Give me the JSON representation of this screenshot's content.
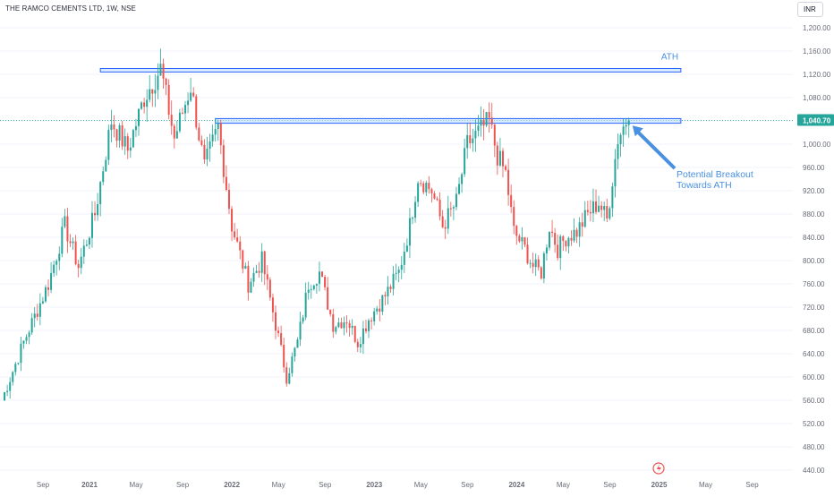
{
  "header": {
    "title": "THE RAMCO CEMENTS LTD, 1W, NSE"
  },
  "currency_button": {
    "label": "INR"
  },
  "colors": {
    "up": "#26a69a",
    "down": "#ef5350",
    "zone_fill": "#bbdefb",
    "zone_border": "#2962ff",
    "annotation": "#4a90e2",
    "price_tag": "#26a69a",
    "axis_text": "#6a6d78"
  },
  "chart_data": {
    "type": "candlestick",
    "title": "THE RAMCO CEMENTS LTD, 1W, NSE",
    "ylim": [
      420,
      1220
    ],
    "y_ticks": [
      440,
      480,
      520,
      560,
      600,
      640,
      680,
      720,
      760,
      800,
      840,
      880,
      920,
      960,
      1000,
      1040,
      1080,
      1120,
      1160,
      1200
    ],
    "y_tick_labels": [
      "440.00",
      "480.00",
      "520.00",
      "560.00",
      "600.00",
      "640.00",
      "680.00",
      "720.00",
      "760.00",
      "800.00",
      "840.00",
      "880.00",
      "920.00",
      "960.00",
      "1,000.00",
      "1,040.00",
      "1,080.00",
      "1,120.00",
      "1,160.00",
      "1,200.00"
    ],
    "x_ticks": [
      "Sep",
      "2021",
      "May",
      "Sep",
      "2022",
      "May",
      "Sep",
      "2023",
      "May",
      "Sep",
      "2024",
      "May",
      "Sep",
      "2025",
      "May",
      "Sep"
    ],
    "x_tick_week_index": [
      0,
      17,
      34,
      51,
      69,
      86,
      103,
      121,
      138,
      155,
      173,
      190,
      207,
      225,
      242,
      259
    ],
    "last_price": 1040.7,
    "last_price_label": "1,040.70",
    "zones": [
      {
        "label": "ATH",
        "from_week": 36,
        "to_week": 248,
        "low": 1124,
        "high": 1130
      },
      {
        "label": "",
        "from_week": 78,
        "to_week": 248,
        "low": 1036,
        "high": 1044
      }
    ],
    "annotations": [
      {
        "text_lines": [
          "Potential Breakout",
          "Towards ATH"
        ],
        "arrow_to_week": 229,
        "arrow_to_price": 1038
      }
    ],
    "close_anchors": [
      [
        0,
        560
      ],
      [
        8,
        660
      ],
      [
        17,
        760
      ],
      [
        23,
        860
      ],
      [
        28,
        790
      ],
      [
        34,
        880
      ],
      [
        40,
        1040
      ],
      [
        46,
        990
      ],
      [
        52,
        1080
      ],
      [
        58,
        1130
      ],
      [
        63,
        1010
      ],
      [
        69,
        1100
      ],
      [
        74,
        960
      ],
      [
        79,
        1030
      ],
      [
        84,
        860
      ],
      [
        90,
        760
      ],
      [
        95,
        800
      ],
      [
        100,
        690
      ],
      [
        104,
        600
      ],
      [
        108,
        660
      ],
      [
        112,
        760
      ],
      [
        116,
        780
      ],
      [
        121,
        690
      ],
      [
        126,
        700
      ],
      [
        130,
        660
      ],
      [
        134,
        700
      ],
      [
        140,
        740
      ],
      [
        145,
        780
      ],
      [
        149,
        860
      ],
      [
        152,
        945
      ],
      [
        157,
        920
      ],
      [
        161,
        860
      ],
      [
        166,
        900
      ],
      [
        170,
        1000
      ],
      [
        174,
        1020
      ],
      [
        178,
        1040
      ],
      [
        181,
        980
      ],
      [
        184,
        950
      ],
      [
        187,
        850
      ],
      [
        191,
        820
      ],
      [
        194,
        790
      ],
      [
        197,
        780
      ],
      [
        200,
        860
      ],
      [
        203,
        820
      ],
      [
        206,
        840
      ],
      [
        210,
        850
      ],
      [
        214,
        880
      ],
      [
        218,
        900
      ],
      [
        221,
        870
      ],
      [
        225,
        1010
      ],
      [
        228,
        1040
      ],
      [
        229,
        1040.7
      ]
    ]
  }
}
